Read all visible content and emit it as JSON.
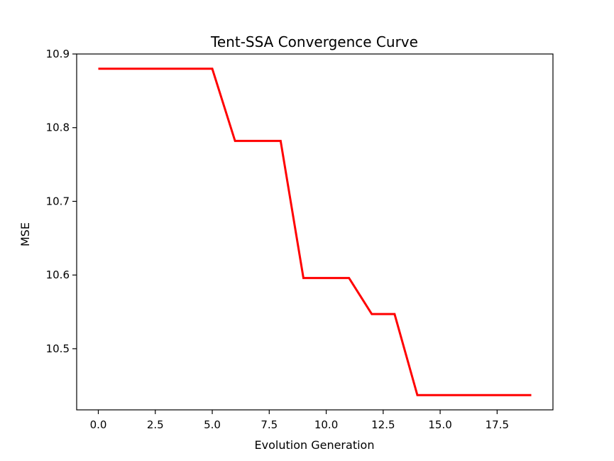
{
  "chart_data": {
    "type": "line",
    "title": "Tent-SSA Convergence Curve",
    "xlabel": "Evolution Generation",
    "ylabel": "MSE",
    "xlim": [
      -0.95,
      19.95
    ],
    "ylim": [
      10.417,
      10.9
    ],
    "x_ticks": [
      0.0,
      2.5,
      5.0,
      7.5,
      10.0,
      12.5,
      15.0,
      17.5
    ],
    "x_tick_labels": [
      "0.0",
      "2.5",
      "5.0",
      "7.5",
      "10.0",
      "12.5",
      "15.0",
      "17.5"
    ],
    "y_ticks": [
      10.5,
      10.6,
      10.7,
      10.8,
      10.9
    ],
    "y_tick_labels": [
      "10.5",
      "10.6",
      "10.7",
      "10.8",
      "10.9"
    ],
    "grid": false,
    "series": [
      {
        "color": "#ff0000",
        "x": [
          0,
          1,
          2,
          3,
          4,
          5,
          6,
          7,
          8,
          9,
          10,
          11,
          12,
          13,
          14,
          15,
          16,
          17,
          18,
          19
        ],
        "y": [
          10.88,
          10.88,
          10.88,
          10.88,
          10.88,
          10.88,
          10.782,
          10.782,
          10.782,
          10.596,
          10.596,
          10.596,
          10.547,
          10.547,
          10.437,
          10.437,
          10.437,
          10.437,
          10.437,
          10.437
        ]
      }
    ]
  }
}
